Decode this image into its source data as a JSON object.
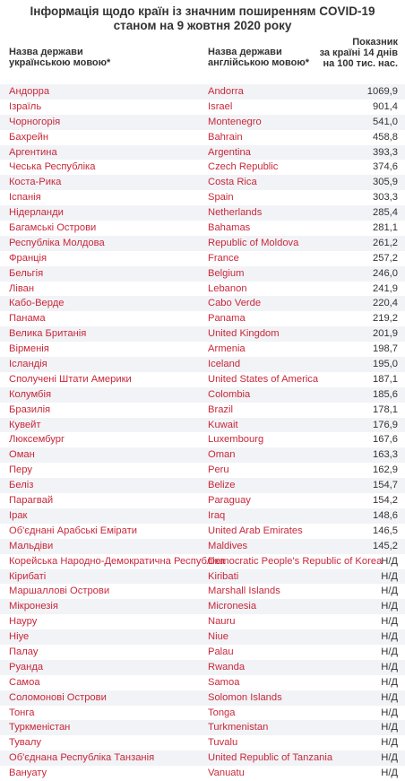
{
  "title": {
    "line1": "Інформація щодо країн із значним поширенням COVID-19",
    "line2": "станом на 9 жовтня 2020 року"
  },
  "headers": {
    "ua": [
      "Назва держави",
      "українською мовою*"
    ],
    "en": [
      "Назва держави",
      "англійською мовою*"
    ],
    "value": [
      "Показник",
      "за країні 14 днів",
      "на 100 тис. нас."
    ]
  },
  "rows": [
    {
      "ua": "Андорра",
      "en": "Andorra",
      "v": "1069,9"
    },
    {
      "ua": "Ізраїль",
      "en": "Israel",
      "v": "901,4"
    },
    {
      "ua": "Чорногорія",
      "en": "Montenegro",
      "v": "541,0"
    },
    {
      "ua": "Бахрейн",
      "en": "Bahrain",
      "v": "458,8"
    },
    {
      "ua": "Аргентина",
      "en": "Argentina",
      "v": "393,3"
    },
    {
      "ua": "Чеська Республіка",
      "en": "Czech Republic",
      "v": "374,6"
    },
    {
      "ua": "Коста-Рика",
      "en": "Costa Rica",
      "v": "305,9"
    },
    {
      "ua": "Іспанія",
      "en": "Spain",
      "v": "303,3"
    },
    {
      "ua": "Нідерланди",
      "en": "Netherlands",
      "v": "285,4"
    },
    {
      "ua": "Багамські Острови",
      "en": "Bahamas",
      "v": "281,1"
    },
    {
      "ua": "Республіка Молдова",
      "en": "Republic of Moldova",
      "v": "261,2"
    },
    {
      "ua": "Франція",
      "en": "France",
      "v": "257,2"
    },
    {
      "ua": "Бельгія",
      "en": "Belgium",
      "v": "246,0"
    },
    {
      "ua": "Ліван",
      "en": "Lebanon",
      "v": "241,9"
    },
    {
      "ua": "Кабо-Верде",
      "en": "Cabo Verde",
      "v": "220,4"
    },
    {
      "ua": "Панама",
      "en": "Panama",
      "v": "219,2"
    },
    {
      "ua": "Велика Британія",
      "en": "United Kingdom",
      "v": "201,9"
    },
    {
      "ua": "Вірменія",
      "en": "Armenia",
      "v": "198,7"
    },
    {
      "ua": "Ісландія",
      "en": "Iceland",
      "v": "195,0"
    },
    {
      "ua": "Сполучені Штати Америки",
      "en": "United States of America",
      "v": "187,1"
    },
    {
      "ua": "Колумбія",
      "en": "Colombia",
      "v": "185,6"
    },
    {
      "ua": "Бразилія",
      "en": "Brazil",
      "v": "178,1"
    },
    {
      "ua": "Кувейт",
      "en": "Kuwait",
      "v": "176,9"
    },
    {
      "ua": "Люксембург",
      "en": "Luxembourg",
      "v": "167,6"
    },
    {
      "ua": "Оман",
      "en": "Oman",
      "v": "163,3"
    },
    {
      "ua": "Перу",
      "en": "Peru",
      "v": "162,9"
    },
    {
      "ua": "Беліз",
      "en": "Belize",
      "v": "154,7"
    },
    {
      "ua": "Парагвай",
      "en": "Paraguay",
      "v": "154,2"
    },
    {
      "ua": "Ірак",
      "en": "Iraq",
      "v": "148,6"
    },
    {
      "ua": "Об'єднані Арабські Емірати",
      "en": "United Arab Emirates",
      "v": "146,5"
    },
    {
      "ua": "Мальдіви",
      "en": "Maldives",
      "v": "145,2"
    },
    {
      "ua": "Корейська Народно-Демократична Республіка",
      "en": "Democratic People's Republic of Korea",
      "v": "Н/Д"
    },
    {
      "ua": "Кірибаті",
      "en": "Kiribati",
      "v": "Н/Д"
    },
    {
      "ua": "Маршаллові Острови",
      "en": "Marshall Islands",
      "v": "Н/Д"
    },
    {
      "ua": "Мікронезія",
      "en": "Micronesia",
      "v": "Н/Д"
    },
    {
      "ua": "Науру",
      "en": "Nauru",
      "v": "Н/Д"
    },
    {
      "ua": "Ніуе",
      "en": "Niue",
      "v": "Н/Д"
    },
    {
      "ua": "Палау",
      "en": "Palau",
      "v": "Н/Д"
    },
    {
      "ua": "Руанда",
      "en": "Rwanda",
      "v": "Н/Д"
    },
    {
      "ua": "Самоа",
      "en": "Samoa",
      "v": "Н/Д"
    },
    {
      "ua": "Соломонові Острови",
      "en": "Solomon Islands",
      "v": "Н/Д"
    },
    {
      "ua": "Тонга",
      "en": "Tonga",
      "v": "Н/Д"
    },
    {
      "ua": "Туркменістан",
      "en": "Turkmenistan",
      "v": "Н/Д"
    },
    {
      "ua": "Тувалу",
      "en": "Tuvalu",
      "v": "Н/Д"
    },
    {
      "ua": "Об'єднана Республіка Танзанія",
      "en": "United Republic of Tanzania",
      "v": "Н/Д"
    },
    {
      "ua": "Вануату",
      "en": "Vanuatu",
      "v": "Н/Д"
    }
  ]
}
